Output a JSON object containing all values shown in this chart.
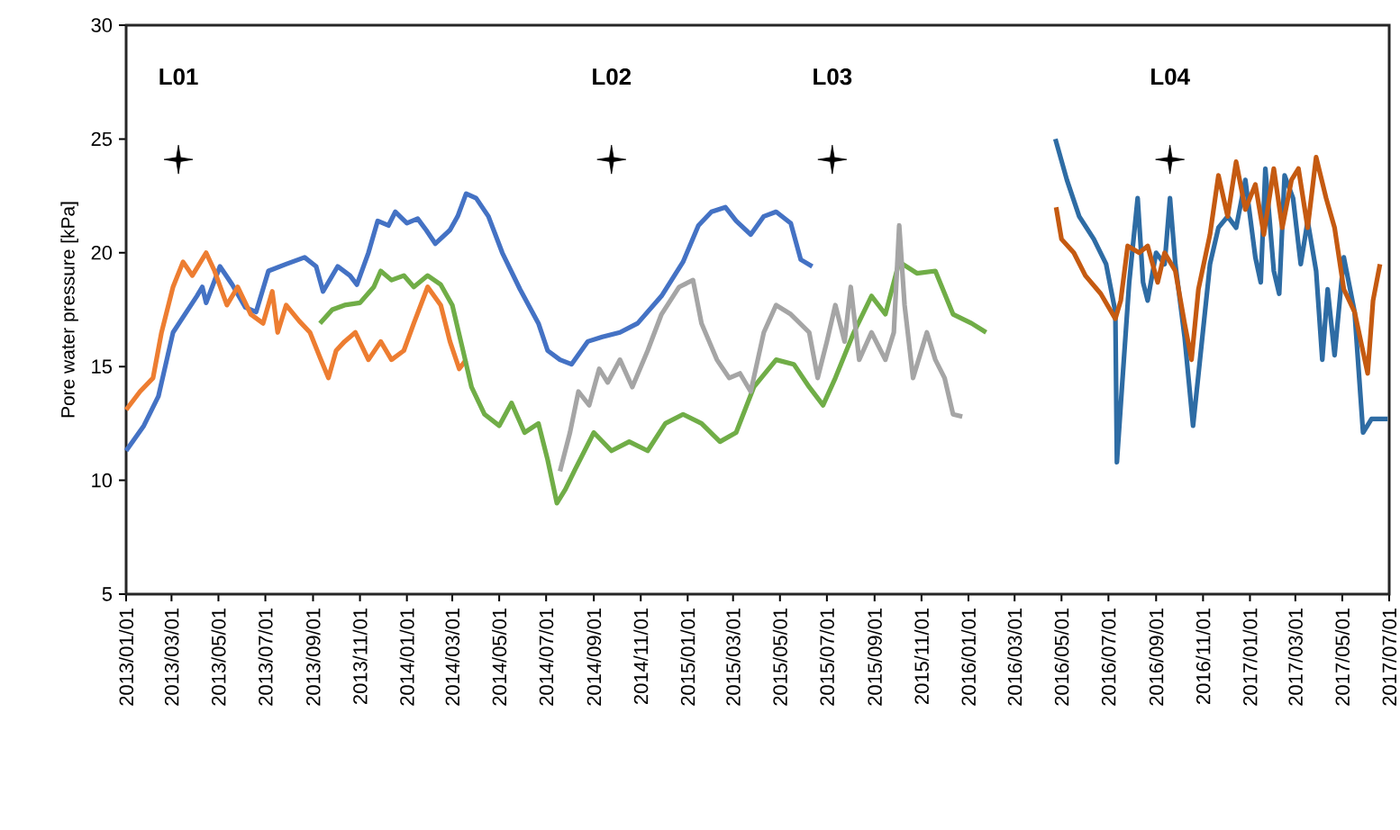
{
  "chart_data": {
    "type": "line",
    "ylabel": "Pore water pressure [kPa]",
    "xlim": [
      "2013-01-01",
      "2017-07-01"
    ],
    "ylim": [
      5,
      30
    ],
    "yticks": [
      5,
      10,
      15,
      20,
      25,
      30
    ],
    "xticks": [
      {
        "value": "2013-01-01",
        "label": "2013/01/01"
      },
      {
        "value": "2013-03-01",
        "label": "2013/03/01"
      },
      {
        "value": "2013-05-01",
        "label": "2013/05/01"
      },
      {
        "value": "2013-07-01",
        "label": "2013/07/01"
      },
      {
        "value": "2013-09-01",
        "label": "2013/09/01"
      },
      {
        "value": "2013-11-01",
        "label": "2013/11/01"
      },
      {
        "value": "2014-01-01",
        "label": "2014/01/01"
      },
      {
        "value": "2014-03-01",
        "label": "2014/03/01"
      },
      {
        "value": "2014-05-01",
        "label": "2014/05/01"
      },
      {
        "value": "2014-07-01",
        "label": "2014/07/01"
      },
      {
        "value": "2014-09-01",
        "label": "2014/09/01"
      },
      {
        "value": "2014-11-01",
        "label": "2014/11/01"
      },
      {
        "value": "2015-01-01",
        "label": "2015/01/01"
      },
      {
        "value": "2015-03-01",
        "label": "2015/03/01"
      },
      {
        "value": "2015-05-01",
        "label": "2015/05/01"
      },
      {
        "value": "2015-07-01",
        "label": "2015/07/01"
      },
      {
        "value": "2015-09-01",
        "label": "2015/09/01"
      },
      {
        "value": "2015-11-01",
        "label": "2015/11/01"
      },
      {
        "value": "2016-01-01",
        "label": "2016/01/01"
      },
      {
        "value": "2016-03-01",
        "label": "2016/03/01"
      },
      {
        "value": "2016-05-01",
        "label": "2016/05/01"
      },
      {
        "value": "2016-07-01",
        "label": "2016/07/01"
      },
      {
        "value": "2016-09-01",
        "label": "2016/09/01"
      },
      {
        "value": "2016-11-01",
        "label": "2016/11/01"
      },
      {
        "value": "2017-01-01",
        "label": "2017/01/01"
      },
      {
        "value": "2017-03-01",
        "label": "2017/03/01"
      },
      {
        "value": "2017-05-01",
        "label": "2017/05/01"
      },
      {
        "value": "2017-07-01",
        "label": "2017/07/01"
      }
    ],
    "series": [
      {
        "color": "#4472c4",
        "x": [
          "2013-01-01",
          "2013-01-24",
          "2013-02-12",
          "2013-03-03",
          "2013-04-03",
          "2013-04-10",
          "2013-04-15",
          "2013-05-03",
          "2013-05-19",
          "2013-06-05",
          "2013-06-19",
          "2013-07-05",
          "2013-07-28",
          "2013-08-21",
          "2013-09-05",
          "2013-09-14",
          "2013-10-03",
          "2013-10-19",
          "2013-10-28",
          "2013-11-12",
          "2013-11-24",
          "2013-12-08",
          "2013-12-17",
          "2014-01-01",
          "2014-01-15",
          "2014-01-26",
          "2014-02-07",
          "2014-02-26",
          "2014-03-08",
          "2014-03-19",
          "2014-04-01",
          "2014-04-17",
          "2014-05-05",
          "2014-05-28",
          "2014-06-21",
          "2014-07-03",
          "2014-07-19",
          "2014-08-03",
          "2014-08-24",
          "2014-09-12",
          "2014-10-05",
          "2014-10-28",
          "2014-11-28",
          "2014-12-26",
          "2015-01-15",
          "2015-02-01",
          "2015-02-19",
          "2015-03-05",
          "2015-03-24",
          "2015-04-10",
          "2015-04-26",
          "2015-05-15",
          "2015-05-28",
          "2015-06-12"
        ],
        "values": [
          11.3,
          12.4,
          13.7,
          16.5,
          18.1,
          18.5,
          17.8,
          19.4,
          18.6,
          17.6,
          17.4,
          19.2,
          19.5,
          19.8,
          19.4,
          18.3,
          19.4,
          19.0,
          18.6,
          20.0,
          21.4,
          21.2,
          21.8,
          21.3,
          21.5,
          21.0,
          20.4,
          21.0,
          21.6,
          22.6,
          22.4,
          21.6,
          20.0,
          18.4,
          16.9,
          15.7,
          15.3,
          15.1,
          16.1,
          16.3,
          16.5,
          16.9,
          18.1,
          19.6,
          21.2,
          21.8,
          22.0,
          21.4,
          20.8,
          21.6,
          21.8,
          21.3,
          19.7,
          19.4
        ]
      },
      {
        "color": "#ed7d31",
        "x": [
          "2013-01-01",
          "2013-01-19",
          "2013-02-05",
          "2013-02-16",
          "2013-03-03",
          "2013-03-16",
          "2013-03-28",
          "2013-04-15",
          "2013-04-26",
          "2013-05-12",
          "2013-05-26",
          "2013-06-05",
          "2013-06-12",
          "2013-06-28",
          "2013-07-10",
          "2013-07-17",
          "2013-07-28",
          "2013-08-14",
          "2013-08-28",
          "2013-09-10",
          "2013-09-21",
          "2013-10-01",
          "2013-10-12",
          "2013-10-26",
          "2013-11-12",
          "2013-11-28",
          "2013-12-12",
          "2013-12-28",
          "2014-01-10",
          "2014-01-28",
          "2014-02-14",
          "2014-02-26",
          "2014-03-10",
          "2014-03-19"
        ],
        "values": [
          13.1,
          13.9,
          14.5,
          16.5,
          18.5,
          19.6,
          19.0,
          20.0,
          19.2,
          17.7,
          18.5,
          17.8,
          17.3,
          16.9,
          18.3,
          16.5,
          17.7,
          17.0,
          16.5,
          15.4,
          14.5,
          15.7,
          16.1,
          16.5,
          15.3,
          16.1,
          15.3,
          15.7,
          16.9,
          18.5,
          17.7,
          16.1,
          14.9,
          15.3
        ]
      },
      {
        "color": "#70ad47",
        "x": [
          "2013-09-10",
          "2013-09-26",
          "2013-10-12",
          "2013-11-01",
          "2013-11-19",
          "2013-11-28",
          "2013-12-12",
          "2013-12-28",
          "2014-01-10",
          "2014-01-28",
          "2014-02-14",
          "2014-03-01",
          "2014-03-15",
          "2014-03-26",
          "2014-04-12",
          "2014-05-01",
          "2014-05-17",
          "2014-06-03",
          "2014-06-21",
          "2014-07-03",
          "2014-07-15",
          "2014-07-26",
          "2014-08-08",
          "2014-09-01",
          "2014-09-24",
          "2014-10-17",
          "2014-11-10",
          "2014-12-03",
          "2014-12-26",
          "2015-01-19",
          "2015-02-12",
          "2015-03-05",
          "2015-03-28",
          "2015-04-26",
          "2015-05-19",
          "2015-06-08",
          "2015-06-26",
          "2015-07-12",
          "2015-08-05",
          "2015-08-28",
          "2015-09-15",
          "2015-10-03",
          "2015-10-26",
          "2015-11-19",
          "2015-12-12",
          "2016-01-05",
          "2016-01-24"
        ],
        "values": [
          16.9,
          17.5,
          17.7,
          17.8,
          18.5,
          19.2,
          18.8,
          19.0,
          18.5,
          19.0,
          18.6,
          17.7,
          15.7,
          14.1,
          12.9,
          12.4,
          13.4,
          12.1,
          12.5,
          10.9,
          9.0,
          9.6,
          10.5,
          12.1,
          11.3,
          11.7,
          11.3,
          12.5,
          12.9,
          12.5,
          11.7,
          12.1,
          14.1,
          15.3,
          15.1,
          14.1,
          13.3,
          14.5,
          16.5,
          18.1,
          17.3,
          19.6,
          19.1,
          19.2,
          17.3,
          16.9,
          16.5
        ]
      },
      {
        "color": "#a5a5a5",
        "x": [
          "2014-07-19",
          "2014-08-01",
          "2014-08-12",
          "2014-08-26",
          "2014-09-08",
          "2014-09-19",
          "2014-10-05",
          "2014-10-21",
          "2014-11-10",
          "2014-11-28",
          "2014-12-21",
          "2015-01-08",
          "2015-01-19",
          "2015-02-08",
          "2015-02-24",
          "2015-03-10",
          "2015-03-24",
          "2015-04-10",
          "2015-04-26",
          "2015-05-15",
          "2015-06-08",
          "2015-06-19",
          "2015-07-01",
          "2015-07-12",
          "2015-07-24",
          "2015-08-01",
          "2015-08-12",
          "2015-08-28",
          "2015-09-15",
          "2015-09-26",
          "2015-10-03",
          "2015-10-10",
          "2015-10-21",
          "2015-11-08",
          "2015-11-19",
          "2015-12-01",
          "2015-12-12",
          "2015-12-24"
        ],
        "values": [
          10.4,
          12.1,
          13.9,
          13.3,
          14.9,
          14.3,
          15.3,
          14.1,
          15.7,
          17.3,
          18.5,
          18.8,
          16.9,
          15.3,
          14.5,
          14.7,
          13.9,
          16.5,
          17.7,
          17.3,
          16.5,
          14.5,
          16.1,
          17.7,
          16.1,
          18.5,
          15.3,
          16.5,
          15.3,
          16.5,
          21.2,
          17.7,
          14.5,
          16.5,
          15.3,
          14.5,
          12.9,
          12.8
        ]
      },
      {
        "color": "#2e6ca4",
        "x": [
          "2016-04-23",
          "2016-05-08",
          "2016-05-24",
          "2016-06-12",
          "2016-06-28",
          "2016-07-10",
          "2016-07-12",
          "2016-07-19",
          "2016-07-28",
          "2016-08-08",
          "2016-08-15",
          "2016-08-21",
          "2016-09-01",
          "2016-09-12",
          "2016-09-19",
          "2016-09-26",
          "2016-10-08",
          "2016-10-19",
          "2016-10-28",
          "2016-11-10",
          "2016-11-21",
          "2016-12-03",
          "2016-12-14",
          "2016-12-26",
          "2017-01-08",
          "2017-01-15",
          "2017-01-21",
          "2017-02-01",
          "2017-02-08",
          "2017-02-15",
          "2017-02-26",
          "2017-03-08",
          "2017-03-17",
          "2017-03-28",
          "2017-04-05",
          "2017-04-12",
          "2017-04-21",
          "2017-05-03",
          "2017-05-17",
          "2017-05-28",
          "2017-06-08",
          "2017-06-19",
          "2017-06-29"
        ],
        "values": [
          25.0,
          23.2,
          21.6,
          20.6,
          19.5,
          17.4,
          10.8,
          14.3,
          18.7,
          22.4,
          18.7,
          17.9,
          20.0,
          19.5,
          22.4,
          19.5,
          16.3,
          12.4,
          15.3,
          19.5,
          21.1,
          21.6,
          21.1,
          23.2,
          19.8,
          18.7,
          23.7,
          19.2,
          18.2,
          23.4,
          22.4,
          19.5,
          21.4,
          19.2,
          15.3,
          18.4,
          15.5,
          19.8,
          17.4,
          12.1,
          12.7,
          12.7,
          12.7
        ]
      },
      {
        "color": "#c55a11",
        "x": [
          "2016-04-24",
          "2016-05-01",
          "2016-05-17",
          "2016-06-01",
          "2016-06-21",
          "2016-07-10",
          "2016-07-17",
          "2016-07-26",
          "2016-08-10",
          "2016-08-21",
          "2016-09-03",
          "2016-09-12",
          "2016-09-26",
          "2016-10-08",
          "2016-10-17",
          "2016-10-26",
          "2016-11-10",
          "2016-11-21",
          "2016-12-03",
          "2016-12-14",
          "2016-12-26",
          "2017-01-08",
          "2017-01-19",
          "2017-02-01",
          "2017-02-12",
          "2017-02-24",
          "2017-03-05",
          "2017-03-17",
          "2017-03-28",
          "2017-04-10",
          "2017-04-21",
          "2017-05-03",
          "2017-05-17",
          "2017-06-03",
          "2017-06-10",
          "2017-06-19"
        ],
        "values": [
          22.0,
          20.6,
          20.0,
          19.0,
          18.2,
          17.1,
          17.9,
          20.3,
          20.0,
          20.3,
          18.7,
          20.0,
          19.2,
          16.9,
          15.3,
          18.4,
          20.8,
          23.4,
          21.6,
          24.0,
          21.9,
          23.0,
          20.8,
          23.7,
          21.1,
          23.2,
          23.7,
          21.1,
          24.2,
          22.4,
          21.1,
          18.4,
          17.4,
          14.7,
          17.9,
          19.5
        ]
      },
      {
        "type": "scatter",
        "marker": "star",
        "color": "#000000",
        "x": [
          "2013-03-10",
          "2014-09-24",
          "2015-07-08",
          "2016-09-19"
        ],
        "values": [
          24.1,
          24.1,
          24.1,
          24.1
        ]
      }
    ],
    "annotations": [
      "L01",
      "L02",
      "L03",
      "L04"
    ]
  }
}
